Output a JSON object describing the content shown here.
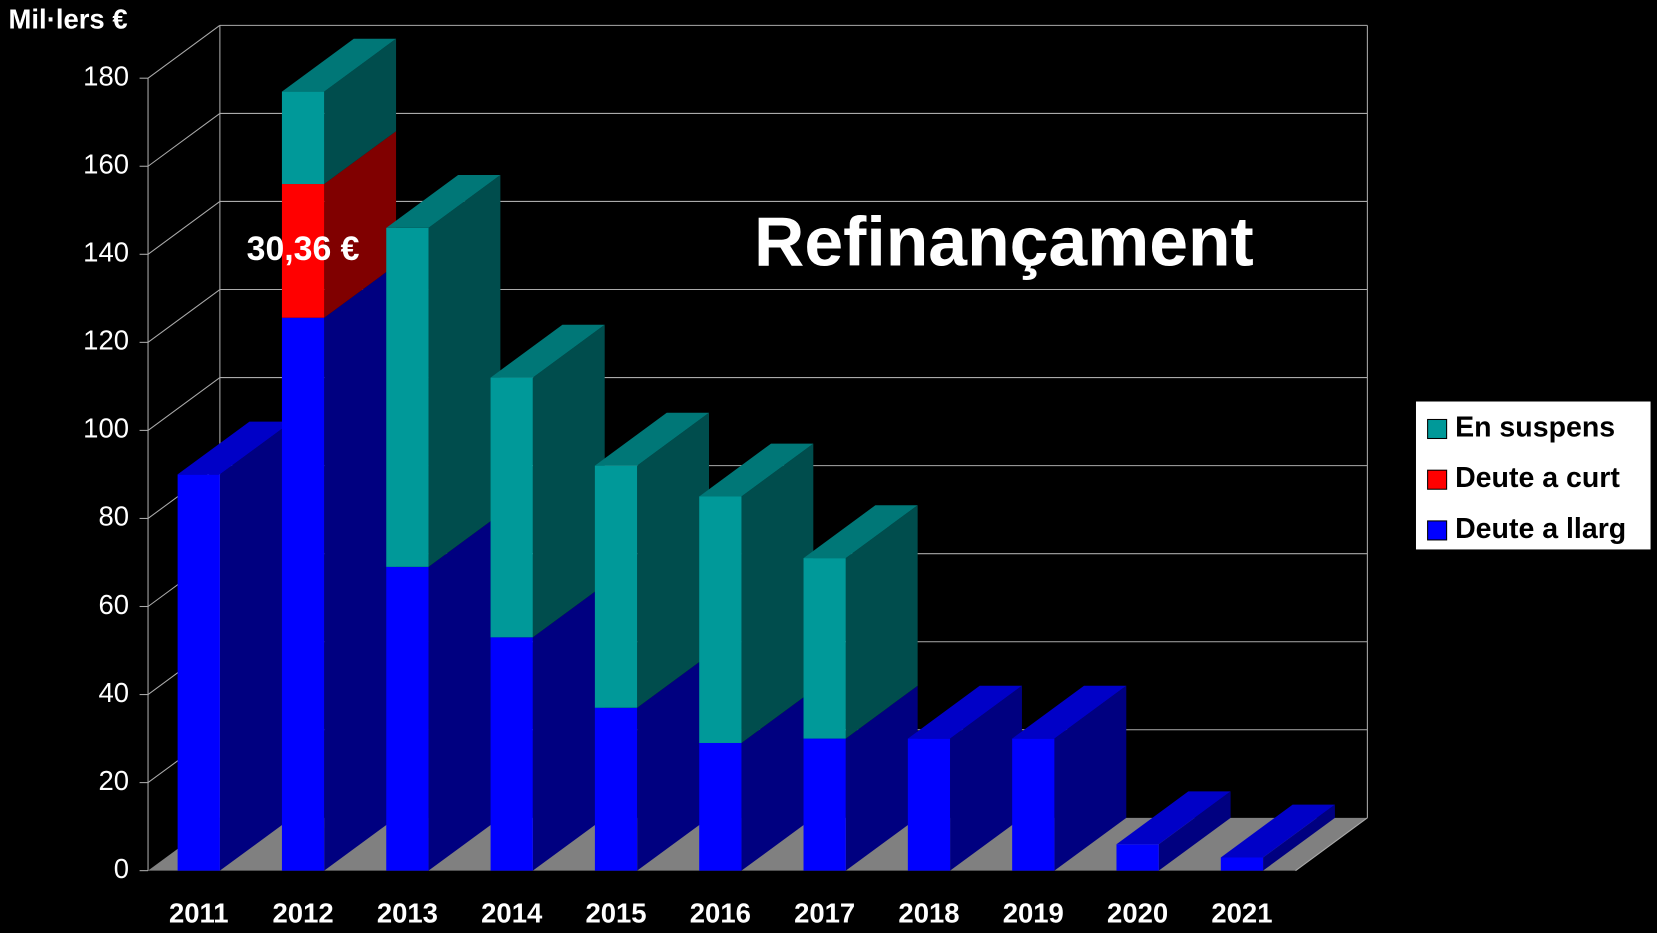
{
  "chart_data": {
    "type": "bar3d_stacked",
    "title": "Refinançament",
    "y_label": "Mil·lers €",
    "categories": [
      "2011",
      "2012",
      "2013",
      "2014",
      "2015",
      "2016",
      "2017",
      "2018",
      "2019",
      "2020",
      "2021"
    ],
    "series": [
      {
        "name": "En suspens",
        "color": "#009999",
        "values": [
          null,
          21,
          77,
          59,
          55,
          56,
          41,
          null,
          null,
          null,
          null
        ]
      },
      {
        "name": "Deute a curt",
        "color": "#ff0000",
        "values": [
          null,
          30.36,
          null,
          null,
          null,
          null,
          null,
          null,
          null,
          null,
          null
        ],
        "value_labels": [
          null,
          "30,36 €",
          null,
          null,
          null,
          null,
          null,
          null,
          null,
          null,
          null
        ]
      },
      {
        "name": "Deute a llarg",
        "color": "#0000ff",
        "values": [
          90,
          125.6,
          69,
          53,
          37,
          29,
          30,
          30,
          30,
          6,
          3
        ]
      }
    ],
    "ylim": [
      0,
      180
    ],
    "yticks": [
      0,
      20,
      40,
      60,
      80,
      100,
      120,
      140,
      160,
      180
    ],
    "grid": true,
    "legend": "right"
  }
}
